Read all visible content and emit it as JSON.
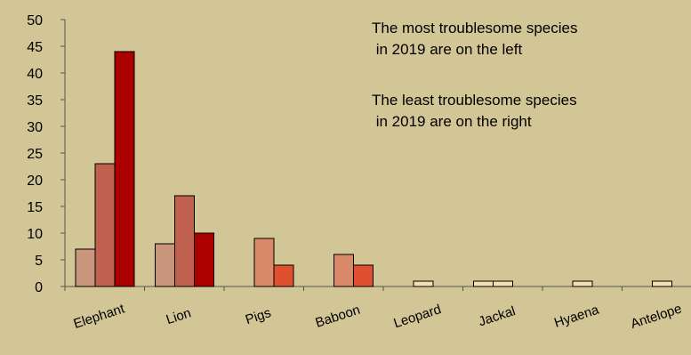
{
  "chart_data": {
    "type": "bar",
    "categories": [
      "Elephant",
      "Lion",
      "Pigs",
      "Baboon",
      "Leopard",
      "Jackal",
      "Hyaena",
      "Antelope"
    ],
    "series": [
      {
        "values": [
          7,
          8,
          0,
          0,
          0,
          1,
          0,
          0
        ],
        "color": "#c9957c"
      },
      {
        "values": [
          23,
          17,
          9,
          6,
          1,
          1,
          1,
          1
        ],
        "color": "#c0614f"
      },
      {
        "values": [
          44,
          10,
          4,
          4,
          0,
          0,
          0,
          0
        ],
        "color": "#aa0000"
      }
    ],
    "bar_colors_override": {
      "Pigs": [
        "#c9957c",
        "#d98a6a",
        "#e05030"
      ],
      "Baboon": [
        "#c9957c",
        "#d98a6a",
        "#e05030"
      ],
      "Leopard": [
        "#c9957c",
        "#f5dfb0",
        "#e05030"
      ],
      "Jackal": [
        "#f5dfb0",
        "#f5dfb0",
        "#e05030"
      ],
      "Hyaena": [
        "#c9957c",
        "#f5dfb0",
        "#e05030"
      ],
      "Antelope": [
        "#c9957c",
        "#f5dfb0",
        "#e05030"
      ]
    },
    "ylim": [
      0,
      50
    ],
    "yticks": [
      0,
      5,
      10,
      15,
      20,
      25,
      30,
      35,
      40,
      45,
      50
    ],
    "annotations": [
      "The most troublesome species\n in 2019 are on the left",
      "The least troublesome species\n in 2019 are on the right"
    ],
    "grid": false
  }
}
